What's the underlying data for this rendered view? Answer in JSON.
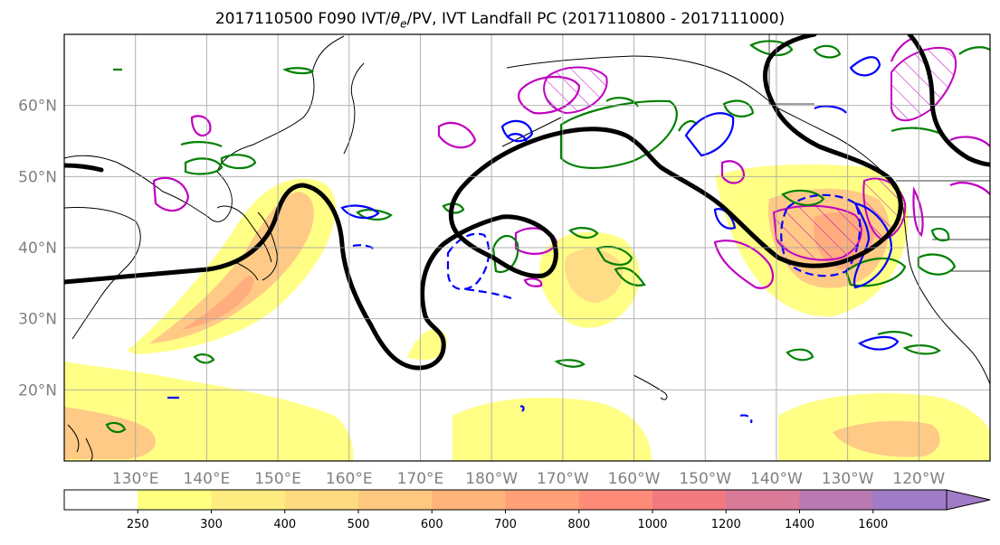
{
  "title": {
    "main": "2017110500 F090 IVT/",
    "theta": "θ",
    "sub": "e",
    "rest": "/PV, IVT Landfall PC (2017110800 - 2017111000)"
  },
  "map": {
    "projection": "cylindrical",
    "lon_range": [
      120,
      250
    ],
    "lat_range": [
      10,
      70
    ],
    "lat_ticks": [
      {
        "lat": 20,
        "label": "20°N"
      },
      {
        "lat": 30,
        "label": "30°N"
      },
      {
        "lat": 40,
        "label": "40°N"
      },
      {
        "lat": 50,
        "label": "50°N"
      },
      {
        "lat": 60,
        "label": "60°N"
      }
    ],
    "lon_ticks": [
      {
        "lon": 130,
        "label": "130°E"
      },
      {
        "lon": 140,
        "label": "140°E"
      },
      {
        "lon": 150,
        "label": "150°E"
      },
      {
        "lon": 160,
        "label": "160°E"
      },
      {
        "lon": 170,
        "label": "170°E"
      },
      {
        "lon": 180,
        "label": "180°W"
      },
      {
        "lon": 190,
        "label": "170°W"
      },
      {
        "lon": 200,
        "label": "160°W"
      },
      {
        "lon": 210,
        "label": "150°W"
      },
      {
        "lon": 220,
        "label": "140°W"
      },
      {
        "lon": 230,
        "label": "130°W"
      },
      {
        "lon": 240,
        "label": "120°W"
      }
    ],
    "grid": true,
    "colors": {
      "ivt_yellow": "#ffff80",
      "ivt_orange": "#ffc080",
      "ivt_salmon": "#ffa070",
      "pc_contour": "#000000",
      "pv_green": "#008000",
      "theta_blue": "#0000ff",
      "magenta": "#c000c0",
      "grid": "#a0a0a0"
    }
  },
  "colorbar": {
    "variable": "IVT",
    "ticks": [
      {
        "value": 250,
        "label": "250"
      },
      {
        "value": 300,
        "label": "300"
      },
      {
        "value": 400,
        "label": "400"
      },
      {
        "value": 500,
        "label": "500"
      },
      {
        "value": 600,
        "label": "600"
      },
      {
        "value": 700,
        "label": "700"
      },
      {
        "value": 800,
        "label": "800"
      },
      {
        "value": 1000,
        "label": "1000"
      },
      {
        "value": 1200,
        "label": "1200"
      },
      {
        "value": 1400,
        "label": "1400"
      },
      {
        "value": 1600,
        "label": "1600"
      }
    ],
    "bins": [
      {
        "color": "#ffffff"
      },
      {
        "color": "#ffff80"
      },
      {
        "color": "#ffec80"
      },
      {
        "color": "#ffdb80"
      },
      {
        "color": "#ffc880"
      },
      {
        "color": "#ffb47c"
      },
      {
        "color": "#ffa078"
      },
      {
        "color": "#ff8c78"
      },
      {
        "color": "#f07a80"
      },
      {
        "color": "#d87a98"
      },
      {
        "color": "#b87ab0"
      },
      {
        "color": "#a07cc8"
      }
    ],
    "extend": "max"
  }
}
